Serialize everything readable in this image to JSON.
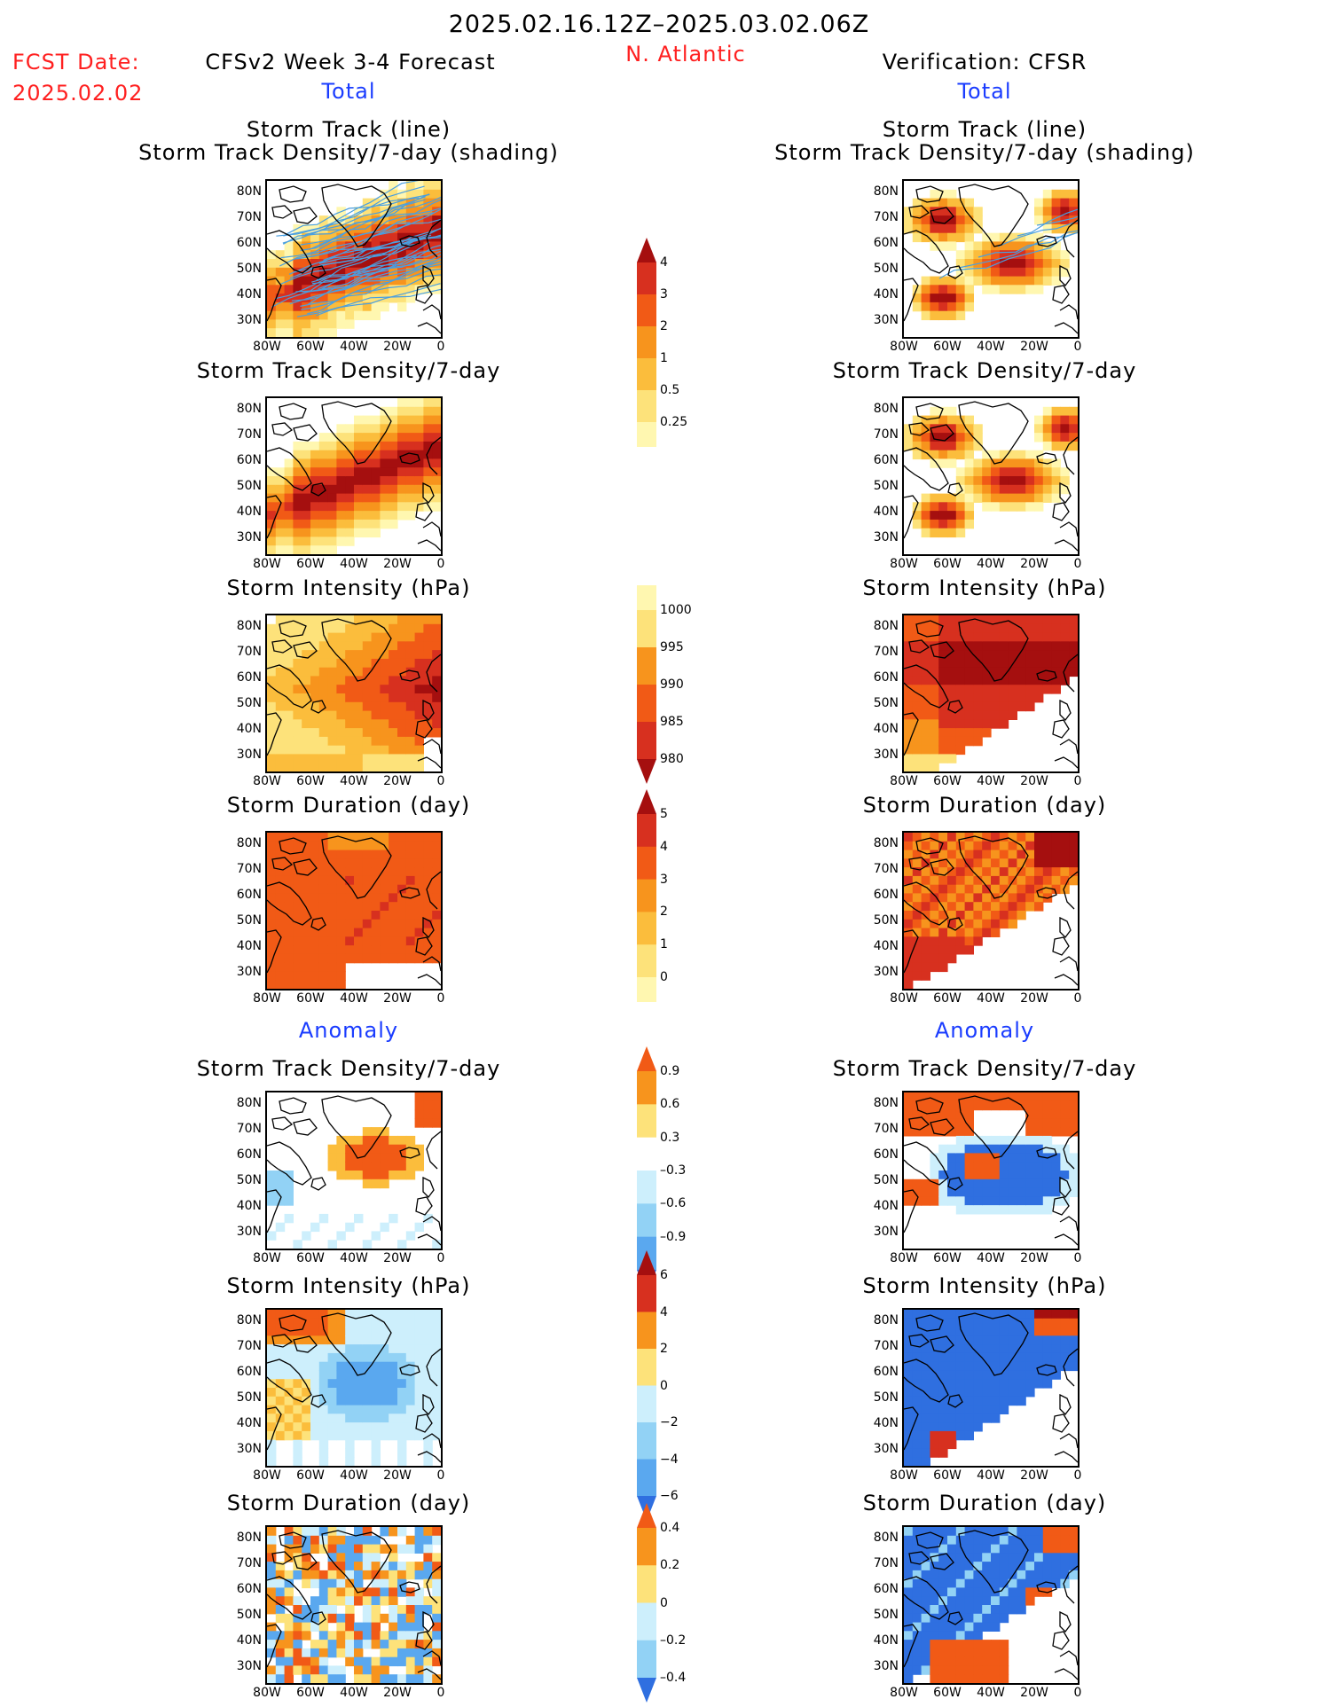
{
  "header": {
    "date_range": "2025.02.16.12Z–2025.03.02.06Z",
    "region": "N. Atlantic",
    "fcst_label": "FCST Date:",
    "fcst_date": "2025.02.02",
    "forecast_title": "CFSv2 Week 3-4 Forecast",
    "verification_title": "Verification: CFSR",
    "total_left": "Total",
    "total_right": "Total",
    "anomaly_left": "Anomaly",
    "anomaly_right": "Anomaly"
  },
  "axes": {
    "lat_ticks": [
      "80N",
      "70N",
      "60N",
      "50N",
      "40N",
      "30N"
    ],
    "lon_ticks": [
      "80W",
      "60W",
      "40W",
      "20W",
      "0"
    ]
  },
  "panels": {
    "track_line": "Storm Track (line)",
    "track_shading": "Storm Track Density/7-day (shading)",
    "density": "Storm Track Density/7-day",
    "intensity": "Storm Intensity (hPa)",
    "duration": "Storm Duration (day)"
  },
  "colorbars": {
    "density_total": [
      "4",
      "3",
      "2",
      "1",
      "0.5",
      "0.25"
    ],
    "intensity_total": [
      "1000",
      "995",
      "990",
      "985",
      "980"
    ],
    "duration_total": [
      "5",
      "4",
      "3",
      "2",
      "1",
      "0"
    ],
    "density_anom": [
      "0.9",
      "0.6",
      "0.3",
      "–0.3",
      "–0.6",
      "–0.9"
    ],
    "intensity_anom": [
      "6",
      "4",
      "2",
      "0",
      "−2",
      "−4",
      "−6"
    ],
    "duration_anom": [
      "0.4",
      "0.2",
      "0",
      "–0.2",
      "–0.4"
    ]
  },
  "colors": {
    "warm": [
      "#fff7b0",
      "#fde27a",
      "#fbbd3c",
      "#f7941d",
      "#f15a16",
      "#d7301f",
      "#a50f0f"
    ],
    "cool": [
      "#cdeffc",
      "#92d2f5",
      "#5aa8ef",
      "#2f6fe0",
      "#1a4ed8"
    ],
    "track": "#4a9fe0"
  }
}
